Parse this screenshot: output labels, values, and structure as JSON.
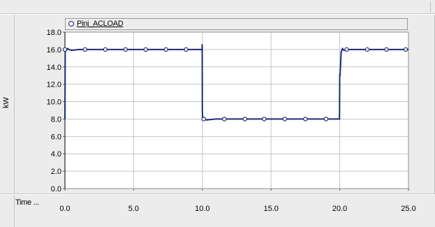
{
  "chart_data": {
    "type": "line",
    "title": "",
    "xlabel": "Time ...",
    "ylabel": "kW",
    "xlim": [
      0.0,
      25.0
    ],
    "ylim": [
      0.0,
      18.0
    ],
    "x_ticks": [
      "0.0",
      "5.0",
      "10.0",
      "15.0",
      "20.0",
      "25.0"
    ],
    "y_ticks": [
      "0.0",
      "2.0",
      "4.0",
      "6.0",
      "8.0",
      "10.0",
      "12.0",
      "14.0",
      "16.0",
      "18.0"
    ],
    "grid": true,
    "legend": "top",
    "series": [
      {
        "name": "Pinj_ACLOAD",
        "color": "#1e2a78",
        "marker": "circle-open",
        "x": [
          0.0,
          0.02,
          0.1,
          0.2,
          0.3,
          0.5,
          1.0,
          2.0,
          3.0,
          4.0,
          5.0,
          6.0,
          7.0,
          8.0,
          9.0,
          9.98,
          9.99,
          10.0,
          10.02,
          10.1,
          10.3,
          11.0,
          12.0,
          13.0,
          14.0,
          15.0,
          16.0,
          17.0,
          18.0,
          19.0,
          19.98,
          20.0,
          20.02,
          20.1,
          20.2,
          20.3,
          20.5,
          21.0,
          22.0,
          23.0,
          24.0,
          25.0
        ],
        "y": [
          8.0,
          16.1,
          15.9,
          16.1,
          16.0,
          15.9,
          16.0,
          16.0,
          16.0,
          16.0,
          16.0,
          16.0,
          16.0,
          16.0,
          16.0,
          16.0,
          16.6,
          8.9,
          8.1,
          8.0,
          7.9,
          8.0,
          8.0,
          8.0,
          8.0,
          8.0,
          8.0,
          8.0,
          8.0,
          8.0,
          8.0,
          13.2,
          13.0,
          15.7,
          16.1,
          15.9,
          16.0,
          16.0,
          16.0,
          16.0,
          16.0,
          16.0
        ],
        "marker_x": [
          0.0,
          1.47,
          2.94,
          4.41,
          5.88,
          7.35,
          8.82,
          10.1,
          11.6,
          13.1,
          14.5,
          16.0,
          17.5,
          19.0,
          20.5,
          22.0,
          23.4,
          24.8
        ],
        "marker_y": [
          16.0,
          16.0,
          16.0,
          16.0,
          16.0,
          16.0,
          16.0,
          8.0,
          8.0,
          8.0,
          8.0,
          8.0,
          8.0,
          8.0,
          16.0,
          16.0,
          16.0,
          16.0
        ]
      }
    ]
  }
}
